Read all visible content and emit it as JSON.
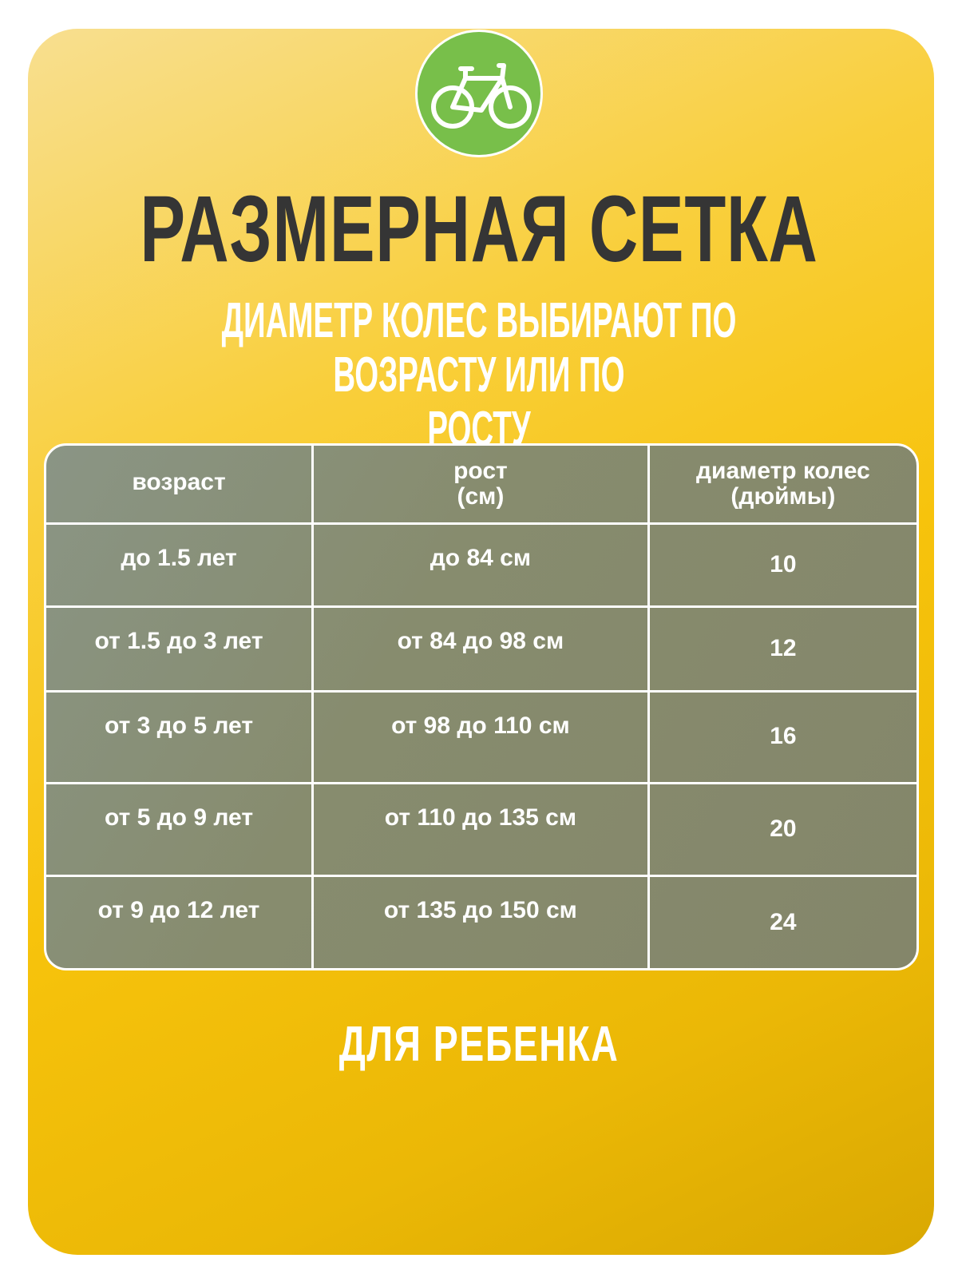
{
  "title": "РАЗМЕРНАЯ СЕТКА",
  "subtitle": {
    "line1": "ДИАМЕТР КОЛЕС ВЫБИРАЮТ ПО ВОЗРАСТУ ИЛИ ПО",
    "line2": "РОСТУ"
  },
  "logo_icon": "bicycle-icon",
  "colors": {
    "background": "#f7c30c",
    "logo": "#78bf4a",
    "title": "#353535",
    "table": "#878c6e"
  },
  "table": {
    "headers": [
      {
        "main": "возраст",
        "sub": ""
      },
      {
        "main": "рост",
        "sub": "(см)"
      },
      {
        "main": "диаметр колес",
        "sub": "(дюймы)"
      }
    ],
    "rows": [
      [
        "до 1.5 лет",
        "до 84 см",
        "10"
      ],
      [
        "от 1.5 до 3 лет",
        "от 84 до 98 см",
        "12"
      ],
      [
        "от 3 до 5 лет",
        "от 98 до 110 см",
        "16"
      ],
      [
        "от 5 до 9 лет",
        "от 110 до 135 см",
        "20"
      ],
      [
        "от 9 до 12 лет",
        "от 135 до 150 см",
        "24"
      ]
    ]
  },
  "footer": "ДЛЯ РЕБЕНКА"
}
